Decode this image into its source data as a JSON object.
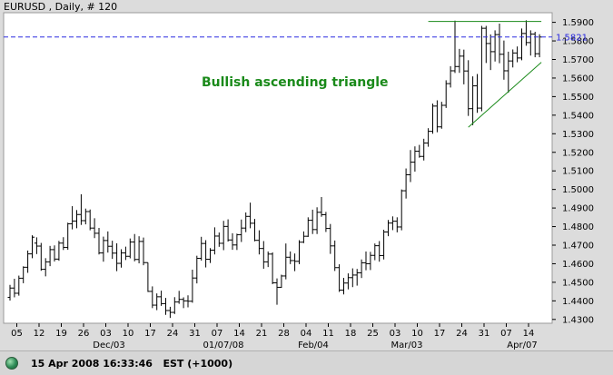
{
  "chart_data": {
    "type": "ohlc",
    "title": "EURUSD , Daily, # 120",
    "annotation": "Bullish ascending triangle",
    "current_price_label": "1.5821",
    "current_price": 1.5821,
    "ylim": [
      1.424,
      1.5985
    ],
    "yticks": [
      "1.5900",
      "1.5800",
      "1.5700",
      "1.5600",
      "1.5500",
      "1.5400",
      "1.5300",
      "1.5200",
      "1.5100",
      "1.5000",
      "1.4900",
      "1.4800",
      "1.4700",
      "1.4600",
      "1.4500",
      "1.4400",
      "1.4300"
    ],
    "xticks": [
      "05",
      "12",
      "19",
      "26",
      "03",
      "10",
      "17",
      "24",
      "31",
      "07",
      "14",
      "21",
      "28",
      "04",
      "11",
      "18",
      "25",
      "03",
      "10",
      "17",
      "24",
      "31",
      "07",
      "14"
    ],
    "month_labels": [
      "Dec/03",
      "01/07/08",
      "Feb/04",
      "Mar/03",
      "Apr/07"
    ],
    "colors": {
      "bars": "#000000",
      "triangle_lines": "#1a8a1a",
      "annotation": "#1a8a1a",
      "current_price_line": "#2a2ae0",
      "background": "#ffffff",
      "frame": "#dcdcdc"
    },
    "ohlc": [
      [
        1.4419,
        1.4486,
        1.4402,
        1.4469
      ],
      [
        1.4469,
        1.4519,
        1.4419,
        1.4441
      ],
      [
        1.4441,
        1.4536,
        1.4428,
        1.4522
      ],
      [
        1.4522,
        1.4586,
        1.4495,
        1.4581
      ],
      [
        1.4581,
        1.4671,
        1.4551,
        1.4653
      ],
      [
        1.4653,
        1.4753,
        1.463,
        1.4743
      ],
      [
        1.4711,
        1.4742,
        1.4652,
        1.4695
      ],
      [
        1.4695,
        1.4712,
        1.4562,
        1.457
      ],
      [
        1.457,
        1.463,
        1.4532,
        1.461
      ],
      [
        1.461,
        1.4696,
        1.4587,
        1.4676
      ],
      [
        1.4676,
        1.4699,
        1.4612,
        1.4625
      ],
      [
        1.4625,
        1.4723,
        1.4616,
        1.4711
      ],
      [
        1.4711,
        1.4743,
        1.4674,
        1.4688
      ],
      [
        1.4688,
        1.4821,
        1.4675,
        1.4815
      ],
      [
        1.4815,
        1.491,
        1.4785,
        1.483
      ],
      [
        1.483,
        1.4889,
        1.4791,
        1.4865
      ],
      [
        1.4865,
        1.4974,
        1.4809,
        1.4832
      ],
      [
        1.4832,
        1.4897,
        1.4812,
        1.4881
      ],
      [
        1.4881,
        1.4892,
        1.478,
        1.4792
      ],
      [
        1.4792,
        1.4845,
        1.4738,
        1.4764
      ],
      [
        1.4764,
        1.4793,
        1.465,
        1.4658
      ],
      [
        1.4658,
        1.4746,
        1.4611,
        1.4725
      ],
      [
        1.4725,
        1.4774,
        1.466,
        1.4694
      ],
      [
        1.4694,
        1.4724,
        1.4626,
        1.4657
      ],
      [
        1.4657,
        1.471,
        1.456,
        1.4602
      ],
      [
        1.4602,
        1.4678,
        1.4579,
        1.4658
      ],
      [
        1.4658,
        1.4692,
        1.462,
        1.464
      ],
      [
        1.464,
        1.4736,
        1.4629,
        1.4717
      ],
      [
        1.4717,
        1.476,
        1.4613,
        1.4623
      ],
      [
        1.4623,
        1.4748,
        1.4602,
        1.472
      ],
      [
        1.472,
        1.4741,
        1.4592,
        1.4606
      ],
      [
        1.4606,
        1.4606,
        1.4448,
        1.4451
      ],
      [
        1.4451,
        1.4478,
        1.4361,
        1.4377
      ],
      [
        1.4377,
        1.444,
        1.435,
        1.4422
      ],
      [
        1.4422,
        1.4455,
        1.4373,
        1.4385
      ],
      [
        1.4385,
        1.4416,
        1.4325,
        1.4348
      ],
      [
        1.4348,
        1.4368,
        1.4308,
        1.4338
      ],
      [
        1.4338,
        1.442,
        1.4329,
        1.4394
      ],
      [
        1.4394,
        1.4454,
        1.4384,
        1.4408
      ],
      [
        1.4408,
        1.4419,
        1.4361,
        1.44
      ],
      [
        1.44,
        1.443,
        1.4365,
        1.4398
      ],
      [
        1.4398,
        1.4568,
        1.439,
        1.4523
      ],
      [
        1.4523,
        1.4643,
        1.4494,
        1.4629
      ],
      [
        1.4629,
        1.4745,
        1.4617,
        1.4709
      ],
      [
        1.4709,
        1.4727,
        1.458,
        1.4624
      ],
      [
        1.4624,
        1.4684,
        1.4604,
        1.4673
      ],
      [
        1.4673,
        1.4796,
        1.465,
        1.4749
      ],
      [
        1.4749,
        1.4768,
        1.4691,
        1.471
      ],
      [
        1.471,
        1.4831,
        1.4673,
        1.4801
      ],
      [
        1.4801,
        1.4839,
        1.4719,
        1.4728
      ],
      [
        1.4728,
        1.4764,
        1.4675,
        1.4701
      ],
      [
        1.4701,
        1.4762,
        1.4674,
        1.4756
      ],
      [
        1.4756,
        1.4838,
        1.4717,
        1.4792
      ],
      [
        1.4792,
        1.4876,
        1.477,
        1.4855
      ],
      [
        1.4855,
        1.4929,
        1.4791,
        1.4818
      ],
      [
        1.4818,
        1.4841,
        1.4721,
        1.4726
      ],
      [
        1.4726,
        1.478,
        1.465,
        1.4682
      ],
      [
        1.4682,
        1.4722,
        1.4573,
        1.461
      ],
      [
        1.461,
        1.4666,
        1.4582,
        1.4652
      ],
      [
        1.4652,
        1.4661,
        1.449,
        1.4497
      ],
      [
        1.4497,
        1.4521,
        1.4379,
        1.4473
      ],
      [
        1.4473,
        1.4541,
        1.447,
        1.4534
      ],
      [
        1.4534,
        1.4709,
        1.4516,
        1.4635
      ],
      [
        1.4635,
        1.4666,
        1.4598,
        1.4617
      ],
      [
        1.4617,
        1.4655,
        1.456,
        1.4613
      ],
      [
        1.4613,
        1.4727,
        1.4598,
        1.4716
      ],
      [
        1.4716,
        1.4774,
        1.4711,
        1.4748
      ],
      [
        1.4748,
        1.485,
        1.4744,
        1.4834
      ],
      [
        1.4834,
        1.4891,
        1.476,
        1.4784
      ],
      [
        1.4784,
        1.4904,
        1.476,
        1.4877
      ],
      [
        1.4877,
        1.4959,
        1.4853,
        1.4864
      ],
      [
        1.4864,
        1.4879,
        1.4771,
        1.479
      ],
      [
        1.479,
        1.4814,
        1.4653,
        1.4696
      ],
      [
        1.4696,
        1.4725,
        1.4561,
        1.4579
      ],
      [
        1.4579,
        1.4597,
        1.4448,
        1.4458
      ],
      [
        1.4458,
        1.4524,
        1.4435,
        1.4496
      ],
      [
        1.4496,
        1.4548,
        1.4462,
        1.4525
      ],
      [
        1.4525,
        1.4575,
        1.4474,
        1.4539
      ],
      [
        1.4539,
        1.4572,
        1.4482,
        1.4551
      ],
      [
        1.4551,
        1.4623,
        1.4523,
        1.4605
      ],
      [
        1.4605,
        1.4666,
        1.4565,
        1.46
      ],
      [
        1.46,
        1.4664,
        1.4566,
        1.4645
      ],
      [
        1.4645,
        1.4709,
        1.4619,
        1.4697
      ],
      [
        1.4697,
        1.4722,
        1.4611,
        1.4644
      ],
      [
        1.4644,
        1.4783,
        1.4623,
        1.4771
      ],
      [
        1.4771,
        1.4836,
        1.4748,
        1.4819
      ],
      [
        1.4819,
        1.4855,
        1.4781,
        1.4829
      ],
      [
        1.4829,
        1.485,
        1.4769,
        1.4798
      ],
      [
        1.4798,
        1.5,
        1.478,
        1.4993
      ],
      [
        1.4993,
        1.5113,
        1.4951,
        1.5079
      ],
      [
        1.5079,
        1.5212,
        1.504,
        1.5147
      ],
      [
        1.5147,
        1.5232,
        1.5096,
        1.5206
      ],
      [
        1.5206,
        1.524,
        1.5171,
        1.5178
      ],
      [
        1.5178,
        1.5273,
        1.5156,
        1.525
      ],
      [
        1.525,
        1.533,
        1.523,
        1.5313
      ],
      [
        1.5313,
        1.5462,
        1.53,
        1.5449
      ],
      [
        1.5449,
        1.548,
        1.5308,
        1.5337
      ],
      [
        1.5337,
        1.5472,
        1.5327,
        1.5453
      ],
      [
        1.5453,
        1.5588,
        1.5439,
        1.557
      ],
      [
        1.557,
        1.5664,
        1.5549,
        1.5639
      ],
      [
        1.5639,
        1.5909,
        1.5627,
        1.5662
      ],
      [
        1.5662,
        1.5757,
        1.5628,
        1.5718
      ],
      [
        1.5718,
        1.5753,
        1.5566,
        1.5638
      ],
      [
        1.5638,
        1.5696,
        1.5396,
        1.5435
      ],
      [
        1.5435,
        1.5609,
        1.5346,
        1.5558
      ],
      [
        1.5558,
        1.5622,
        1.5413,
        1.5438
      ],
      [
        1.5438,
        1.5881,
        1.5421,
        1.5868
      ],
      [
        1.5868,
        1.5881,
        1.5681,
        1.5786
      ],
      [
        1.5786,
        1.5835,
        1.5643,
        1.5742
      ],
      [
        1.5742,
        1.5857,
        1.5689,
        1.5834
      ],
      [
        1.5834,
        1.5893,
        1.568,
        1.5728
      ],
      [
        1.5728,
        1.5802,
        1.5591,
        1.5639
      ],
      [
        1.5639,
        1.5742,
        1.5521,
        1.5692
      ],
      [
        1.5692,
        1.5754,
        1.5657,
        1.5735
      ],
      [
        1.5735,
        1.577,
        1.5685,
        1.5708
      ],
      [
        1.5708,
        1.5867,
        1.5696,
        1.584
      ],
      [
        1.584,
        1.5911,
        1.5774,
        1.5791
      ],
      [
        1.5791,
        1.5857,
        1.5721,
        1.5837
      ],
      [
        1.5837,
        1.5849,
        1.5712,
        1.5731
      ],
      [
        1.5731,
        1.5836,
        1.5712,
        1.5821
      ]
    ]
  },
  "status_bar": {
    "timestamp": "15 Apr 2008 16:33:46",
    "timezone": "EST (+1000)",
    "led_color": "#2e8b57"
  }
}
